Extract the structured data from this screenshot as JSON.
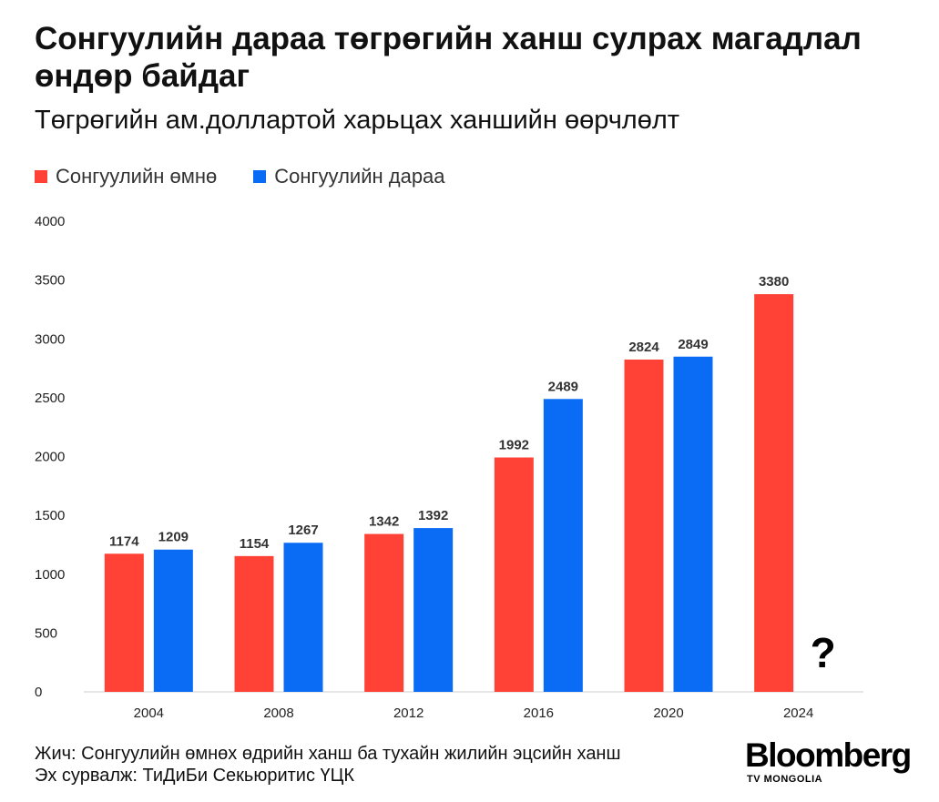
{
  "title": "Сонгуулийн дараа төгрөгийн ханш сулрах магадлал өндөр байдаг",
  "subtitle": "Төгрөгийн ам.доллартой харьцах ханшийн өөрчлөлт",
  "legend": [
    {
      "label": "Сонгуулийн өмнө",
      "color": "#ff4136"
    },
    {
      "label": "Сонгуулийн дараа",
      "color": "#0a6cf5"
    }
  ],
  "chart_data": {
    "type": "bar",
    "categories": [
      "2004",
      "2008",
      "2012",
      "2016",
      "2020",
      "2024"
    ],
    "series": [
      {
        "name": "Сонгуулийн өмнө",
        "color": "#ff4136",
        "values": [
          1174,
          1154,
          1342,
          1992,
          2824,
          3380
        ]
      },
      {
        "name": "Сонгуулийн дараа",
        "color": "#0a6cf5",
        "values": [
          1209,
          1267,
          1392,
          2489,
          2849,
          null
        ]
      }
    ],
    "ylim": [
      0,
      4000
    ],
    "yticks": [
      0,
      500,
      1000,
      1500,
      2000,
      2500,
      3000,
      3500,
      4000
    ],
    "grid": false,
    "legend_position": "top-left",
    "annotation": "?"
  },
  "footer": {
    "note": "Жич: Сонгуулийн өмнөх өдрийн ханш ба тухайн жилийн эцсийн ханш",
    "source": "Эх сурвалж: ТиДиБи Секьюритис ҮЦК"
  },
  "logo": {
    "main": "Bloomberg",
    "sub": "TV MONGOLIA"
  }
}
